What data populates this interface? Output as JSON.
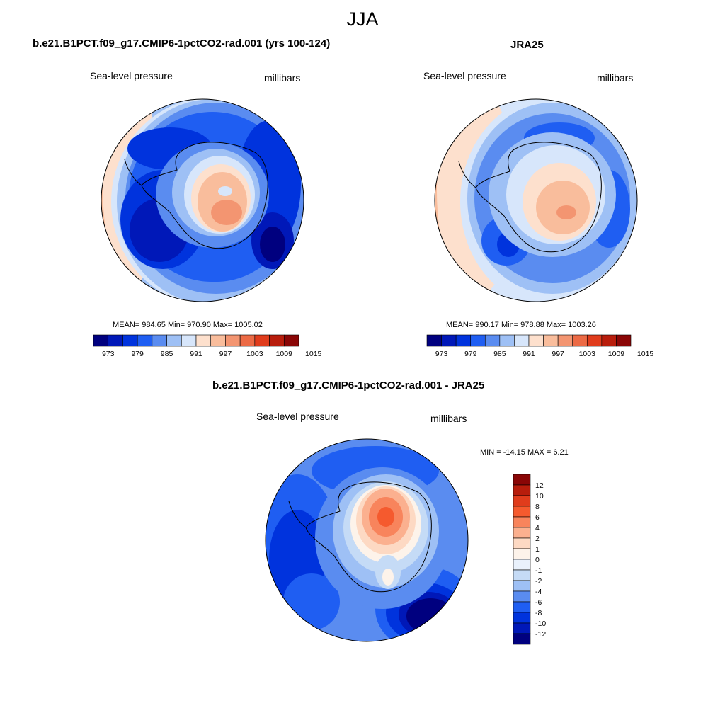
{
  "figure": {
    "title": "JJA",
    "panels": [
      {
        "title": "b.e21.B1PCT.f09_g17.CMIP6-1pctCO2-rad.001 (yrs 100-124)",
        "left_label": "Sea-level pressure",
        "right_label": "millibars",
        "stats": "MEAN= 984.65  Min= 970.90  Max= 1005.02",
        "colorbar_labels": [
          "973",
          "979",
          "985",
          "991",
          "997",
          "1003",
          "1009",
          "1015"
        ]
      },
      {
        "title": "JRA25",
        "left_label": "Sea-level pressure",
        "right_label": "millibars",
        "stats": "MEAN= 990.17  Min= 978.88  Max= 1003.26",
        "colorbar_labels": [
          "973",
          "979",
          "985",
          "991",
          "997",
          "1003",
          "1009",
          "1015"
        ]
      },
      {
        "title": "b.e21.B1PCT.f09_g17.CMIP6-1pctCO2-rad.001 - JRA25",
        "left_label": "Sea-level pressure",
        "right_label": "millibars",
        "stats": "MIN = -14.15 MAX =   6.21",
        "colorbar_labels": [
          "12",
          "10",
          "8",
          "6",
          "4",
          "2",
          "1",
          "0",
          "-1",
          "-2",
          "-4",
          "-6",
          "-8",
          "-10",
          "-12"
        ]
      }
    ]
  },
  "colors": {
    "abs_scale": [
      "#00007f",
      "#0018b8",
      "#0033dd",
      "#1f5ef2",
      "#5a8cf0",
      "#9ec0f5",
      "#d7e6fb",
      "#fde0cd",
      "#f9bd9c",
      "#f39571",
      "#ec6a45",
      "#e03c1c",
      "#b81d0c",
      "#8a0606"
    ],
    "diff_scale": [
      "#8a0606",
      "#b81d0c",
      "#e03c1c",
      "#f55a2e",
      "#f8845c",
      "#fbb08f",
      "#fdd9c3",
      "#fdf3ea",
      "#e9f1fc",
      "#c5dbf6",
      "#9ec0f5",
      "#5a8cf0",
      "#1f5ef2",
      "#0033dd",
      "#0018b8",
      "#00007f"
    ]
  }
}
